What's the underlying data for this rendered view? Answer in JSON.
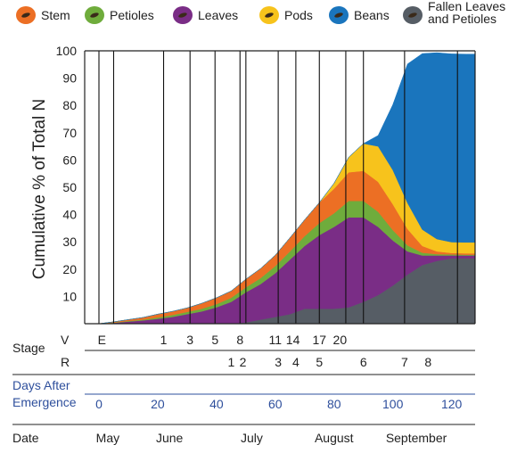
{
  "chart_data": {
    "type": "area",
    "stacked": true,
    "ylabel": "Cumulative % of Total N",
    "ylim": [
      0,
      100
    ],
    "yticks": [
      10,
      20,
      30,
      40,
      50,
      60,
      70,
      80,
      90,
      100
    ],
    "xlim": [
      0,
      128
    ],
    "grid_vertical": true,
    "legend_position": "top",
    "x": [
      0,
      5,
      10,
      15,
      20,
      25,
      30,
      35,
      40,
      45,
      50,
      55,
      60,
      65,
      70,
      75,
      80,
      85,
      90,
      95,
      100,
      105,
      110,
      115,
      120,
      125,
      128
    ],
    "series": [
      {
        "name": "Fallen Leaves and Petioles",
        "color": "#565d65",
        "values": [
          0,
          0,
          0,
          0,
          0,
          0,
          0,
          0,
          0,
          0,
          0.5,
          1.5,
          2.5,
          3.5,
          5.5,
          5.5,
          5.5,
          6,
          8,
          10.5,
          14,
          18,
          21.5,
          23,
          24,
          24,
          24
        ]
      },
      {
        "name": "Leaves",
        "color": "#7a2d86",
        "values": [
          0,
          0.3,
          0.8,
          1.2,
          1.8,
          2.5,
          3.5,
          4.5,
          6,
          8,
          11,
          13,
          16,
          20,
          23,
          27,
          30,
          33,
          31,
          25,
          16.5,
          8.5,
          3.5,
          2,
          1,
          1,
          1
        ]
      },
      {
        "name": "Petioles",
        "color": "#6fac3c",
        "values": [
          0,
          0.1,
          0.2,
          0.3,
          0.5,
          0.7,
          0.8,
          1,
          1.2,
          1.5,
          1.8,
          2.2,
          2.6,
          3,
          3.6,
          4.4,
          5,
          6,
          6,
          5.5,
          3.8,
          2.2,
          1,
          0.5,
          0.4,
          0.3,
          0.3
        ]
      },
      {
        "name": "Stem",
        "color": "#ec6f24",
        "values": [
          0,
          0.3,
          0.5,
          0.8,
          1.2,
          1.3,
          1.5,
          2,
          2.3,
          2.5,
          3,
          3.5,
          4,
          5,
          6,
          7.5,
          9,
          10.5,
          11,
          11,
          9.5,
          6,
          2.5,
          1,
          0.5,
          0.5,
          0.5
        ]
      },
      {
        "name": "Pods",
        "color": "#f7c31c",
        "values": [
          0,
          0,
          0,
          0,
          0,
          0,
          0,
          0,
          0,
          0,
          0,
          0,
          0,
          0,
          0,
          0,
          2,
          5.5,
          10,
          13,
          12.5,
          9.5,
          6,
          4.5,
          4,
          4,
          4
        ]
      },
      {
        "name": "Beans",
        "color": "#1a75bd",
        "values": [
          0,
          0,
          0,
          0,
          0,
          0,
          0,
          0,
          0,
          0,
          0,
          0,
          0,
          0,
          0,
          0,
          0,
          0,
          0,
          4,
          24,
          51,
          64.5,
          68.3,
          69,
          69,
          69
        ]
      }
    ],
    "stage_lines": [
      0,
      5,
      22,
      31,
      39.5,
      48,
      50,
      61,
      67,
      75,
      84,
      90,
      104,
      122,
      128
    ],
    "rows": {
      "stage": {
        "label": "Stage",
        "v_label": "V",
        "v_items": [
          {
            "label": "E",
            "x": 1
          },
          {
            "label": "1",
            "x": 22
          },
          {
            "label": "3",
            "x": 31
          },
          {
            "label": "5",
            "x": 39.5
          },
          {
            "label": "8",
            "x": 48
          },
          {
            "label": "11",
            "x": 60
          },
          {
            "label": "14",
            "x": 66
          },
          {
            "label": "17",
            "x": 75
          },
          {
            "label": "20",
            "x": 82
          }
        ],
        "r_label": "R",
        "r_items": [
          {
            "label": "1",
            "x": 45
          },
          {
            "label": "2",
            "x": 49
          },
          {
            "label": "3",
            "x": 61
          },
          {
            "label": "4",
            "x": 67
          },
          {
            "label": "5",
            "x": 75
          },
          {
            "label": "6",
            "x": 90
          },
          {
            "label": "7",
            "x": 104
          },
          {
            "label": "8",
            "x": 112
          }
        ]
      },
      "days": {
        "label_line1": "Days After",
        "label_line2": "Emergence",
        "ticks": [
          0,
          20,
          40,
          60,
          80,
          100,
          120
        ]
      },
      "date": {
        "label": "Date",
        "items": [
          {
            "label": "May",
            "x": 3
          },
          {
            "label": "June",
            "x": 24
          },
          {
            "label": "July",
            "x": 52
          },
          {
            "label": "August",
            "x": 80
          },
          {
            "label": "September",
            "x": 108
          }
        ]
      }
    }
  }
}
